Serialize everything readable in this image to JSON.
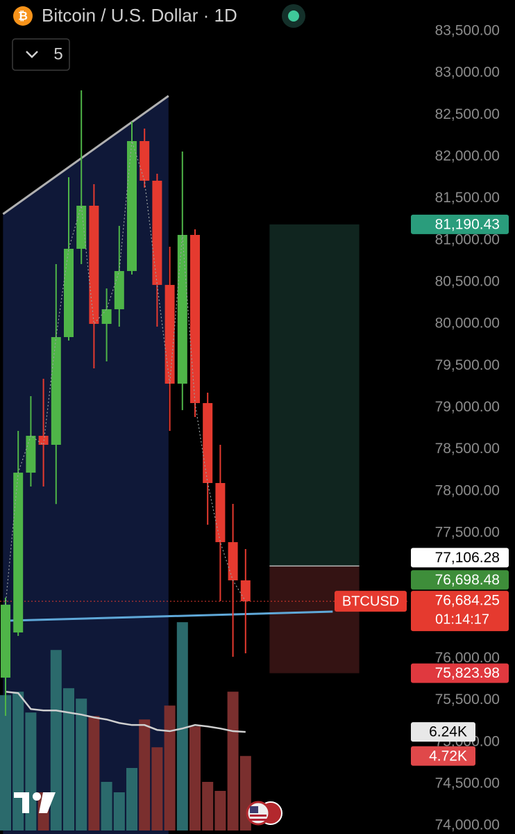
{
  "chart_data": {
    "type": "candlestick",
    "title": "Bitcoin / U.S. Dollar · 1D",
    "indicators": 5,
    "categories": [
      null,
      null,
      null,
      null,
      null,
      null,
      null,
      null,
      null,
      null,
      null,
      null,
      null,
      null,
      null,
      null,
      null,
      null,
      null,
      null
    ],
    "open": [
      75771,
      76311,
      78222,
      78663,
      78555,
      79843,
      80899,
      81414,
      80001,
      80176,
      80633,
      82187,
      81713,
      80467,
      79286,
      81065,
      79054,
      78098,
      77391,
      76934
    ],
    "high": [
      76727,
      78721,
      79137,
      79345,
      80716,
      81755,
      82794,
      81672,
      80425,
      81173,
      82420,
      82336,
      81796,
      80924,
      82062,
      81131,
      79178,
      78555,
      77849,
      77308
    ],
    "low": [
      75314,
      76270,
      78056,
      78056,
      77847,
      79802,
      80716,
      79469,
      79552,
      79968,
      80591,
      81630,
      79968,
      78721,
      78970,
      78887,
      77599,
      76685,
      76020,
      76062
    ],
    "close": [
      76643,
      78222,
      78663,
      78555,
      79843,
      80899,
      81414,
      80001,
      80176,
      80633,
      82187,
      81713,
      80467,
      79286,
      81065,
      79054,
      78098,
      77391,
      76934,
      76684.25
    ],
    "up_color": "#4fb548",
    "down_color": "#e53a2f",
    "ylim": [
      73901,
      83874
    ],
    "yticks": [
      {
        "value": 74000,
        "label": "74,000.00"
      },
      {
        "value": 74500,
        "label": "74,500.00"
      },
      {
        "value": 75000,
        "label": "75,000.00"
      },
      {
        "value": 75500,
        "label": "75,500.00"
      },
      {
        "value": 76000,
        "label": "76,000.00"
      },
      {
        "value": 77500,
        "label": "77,500.00"
      },
      {
        "value": 78000,
        "label": "78,000.00"
      },
      {
        "value": 78500,
        "label": "78,500.00"
      },
      {
        "value": 79000,
        "label": "79,000.00"
      },
      {
        "value": 79500,
        "label": "79,500.00"
      },
      {
        "value": 80000,
        "label": "80,000.00"
      },
      {
        "value": 80500,
        "label": "80,500.00"
      },
      {
        "value": 81000,
        "label": "81,000.00"
      },
      {
        "value": 81500,
        "label": "81,500.00"
      },
      {
        "value": 82000,
        "label": "82,000.00"
      },
      {
        "value": 82500,
        "label": "82,500.00"
      },
      {
        "value": 83000,
        "label": "83,000.00"
      },
      {
        "value": 83500,
        "label": "83,500.00"
      }
    ],
    "trendlines": [
      {
        "x": [
          -0.2,
          12.9
        ],
        "values": [
          81314,
          82727
        ],
        "color": "#b0b0b0",
        "fill": "#0f1838"
      },
      {
        "x": [
          -0.2,
          25.9
        ],
        "values": [
          76450,
          76560
        ],
        "color": "#5fa8d8"
      }
    ],
    "position": {
      "x": [
        20.9,
        28.0
      ],
      "target": {
        "value": 81190.43,
        "label": "81,190.43"
      },
      "entry": {
        "value": 77106.28,
        "label": "77,106.28"
      },
      "stop": {
        "value": 75823.98,
        "label": "75,823.98"
      },
      "profit_color": "#10251f",
      "loss_color": "#341313"
    },
    "bid": {
      "value": 76698.48,
      "label": "76,698.48"
    },
    "last": {
      "value": 76684.25,
      "label": "76,684.25",
      "countdown": "01:14:17",
      "symbol": "BTCUSD"
    },
    "volume": {
      "values": [
        8570,
        8790,
        7470,
        2420,
        11430,
        9010,
        8350,
        7250,
        3080,
        2420,
        3960,
        7030,
        5270,
        7910,
        13190,
        6590,
        3080,
        2510,
        8790,
        4720
      ],
      "last_label": "4.72K",
      "ma": [
        8790,
        8700,
        7690,
        7600,
        7600,
        7470,
        7340,
        7160,
        7030,
        6810,
        6680,
        6680,
        6370,
        6290,
        6460,
        6680,
        6590,
        6460,
        6290,
        6240
      ],
      "ma_last_label": "6.24K",
      "vlim": [
        0,
        13200
      ],
      "up_color": "#2b6a6c",
      "down_color": "#7a2f2e"
    }
  }
}
